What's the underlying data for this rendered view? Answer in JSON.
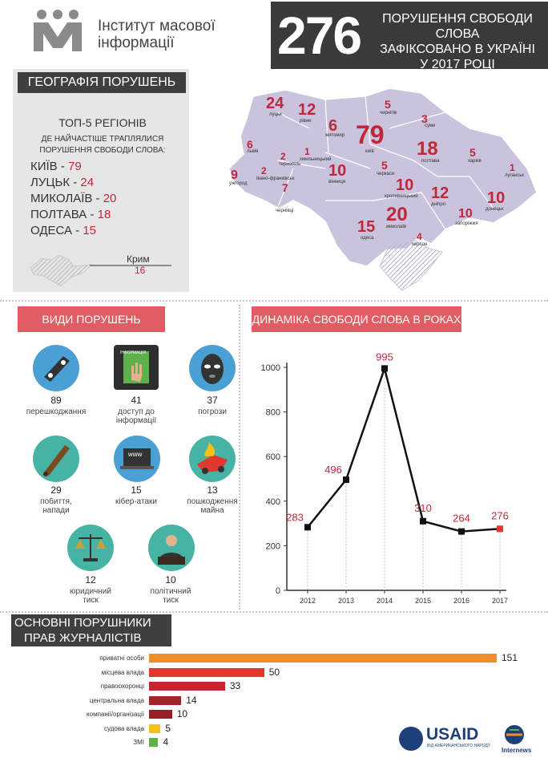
{
  "header": {
    "org_line1": "Інститут масової",
    "org_line2": "інформації",
    "total": "276",
    "headline_l1": "Порушення свободи слова",
    "headline_l2": "зафіксовано в Україні",
    "headline_l3": "у 2017 році"
  },
  "geography": {
    "title": "ГЕОГРАФІЯ ПОРУШЕНЬ",
    "top_title": "ТОП-5 РЕГІОНІВ",
    "top_sub_l1": "ДЕ НАЙЧАСТІШЕ ТРАПЛЯЛИСЯ",
    "top_sub_l2": "ПОРУШЕННЯ СВОБОДИ СЛОВА:",
    "top5": [
      {
        "name": "КИЇВ - ",
        "value": "79"
      },
      {
        "name": "ЛУЦЬК - ",
        "value": "24"
      },
      {
        "name": "МИКОЛАЇВ - ",
        "value": "20"
      },
      {
        "name": "ПОЛТАВА - ",
        "value": "18"
      },
      {
        "name": "ОДЕСА - ",
        "value": "15"
      }
    ],
    "crimea_label": "Крим",
    "crimea_value": "16",
    "map_regions": [
      {
        "value": "24",
        "name": "луцьк"
      },
      {
        "value": "12",
        "name": "рівне"
      },
      {
        "value": "6",
        "name": "житомир"
      },
      {
        "value": "79",
        "name": "київ"
      },
      {
        "value": "5",
        "name": "чернігів"
      },
      {
        "value": "3",
        "name": "суми"
      },
      {
        "value": "6",
        "name": "львів"
      },
      {
        "value": "2",
        "name": "тернопіль"
      },
      {
        "value": "2",
        "name": "івано-франківськ"
      },
      {
        "value": "1",
        "name": "хмельницький"
      },
      {
        "value": "10",
        "name": "вінниця"
      },
      {
        "value": "5",
        "name": "черкаси"
      },
      {
        "value": "18",
        "name": "полтава"
      },
      {
        "value": "5",
        "name": "харків"
      },
      {
        "value": "1",
        "name": "луганськ"
      },
      {
        "value": "9",
        "name": "ужгород"
      },
      {
        "value": "7",
        "name": "чернівці"
      },
      {
        "value": "10",
        "name": "кропивницький"
      },
      {
        "value": "12",
        "name": "дніпро"
      },
      {
        "value": "10",
        "name": "донецьк"
      },
      {
        "value": "10",
        "name": "запоріжжя"
      },
      {
        "value": "20",
        "name": "миколаїв"
      },
      {
        "value": "15",
        "name": "одеса"
      },
      {
        "value": "4",
        "name": "херсон"
      }
    ]
  },
  "types": {
    "title": "ВИДИ ПОРУШЕНЬ",
    "items": [
      {
        "num": "89",
        "l1": "перешкоджання",
        "l2": "",
        "icon": "camera-strap-icon"
      },
      {
        "num": "41",
        "l1": "доступ до",
        "l2": "інформації",
        "icon": "hand-on-document-icon",
        "doc_label": "ІНФОРМАЦІЯ"
      },
      {
        "num": "37",
        "l1": "погрози",
        "l2": "",
        "icon": "balaclava-icon"
      },
      {
        "num": "29",
        "l1": "побиття,",
        "l2": "напади",
        "icon": "bat-icon"
      },
      {
        "num": "15",
        "l1": "кібер-атаки",
        "l2": "",
        "icon": "laptop-www-icon",
        "screen_label": "www"
      },
      {
        "num": "13",
        "l1": "пошкодження",
        "l2": "майна",
        "icon": "burning-car-icon"
      },
      {
        "num": "12",
        "l1": "юридичний",
        "l2": "тиск",
        "icon": "scales-icon"
      },
      {
        "num": "10",
        "l1": "політичний",
        "l2": "тиск",
        "icon": "politician-icon"
      }
    ]
  },
  "dynamics": {
    "title": "ДИНАМІКА СВОБОДИ СЛОВА В РОКАХ"
  },
  "perpetrators": {
    "title_l1": "ОСНОВНІ ПОРУШНИКИ",
    "title_l2": "ПРАВ ЖУРНАЛІСТІВ",
    "items": [
      {
        "label": "приватні особи",
        "value": 151,
        "color": "#f08c2a"
      },
      {
        "label": "місцева влада",
        "value": 50,
        "color": "#e0382e"
      },
      {
        "label": "правоохоронці",
        "value": 33,
        "color": "#c4262e"
      },
      {
        "label": "центральна влада",
        "value": 14,
        "color": "#a3222a"
      },
      {
        "label": "компанії/організації",
        "value": 10,
        "color": "#9a1e26"
      },
      {
        "label": "судова влада",
        "value": 5,
        "color": "#f2c21a"
      },
      {
        "label": "ЗМІ",
        "value": 4,
        "color": "#5db04a"
      }
    ]
  },
  "footer": {
    "usaid": "USAID",
    "usaid_tag": "ВІД АМЕРИКАНСЬКОГО НАРОДУ",
    "internews": "Internews"
  },
  "chart_data": [
    {
      "type": "line",
      "title": "ДИНАМІКА СВОБОДИ СЛОВА В РОКАХ",
      "x": [
        "2012",
        "2013",
        "2014",
        "2015",
        "2016",
        "2017"
      ],
      "values": [
        283,
        496,
        995,
        310,
        264,
        276
      ],
      "ylim": [
        0,
        1000
      ],
      "yticks": [
        0,
        200,
        400,
        600,
        800,
        1000
      ],
      "grid": false,
      "highlight_last_color": "#e0382e"
    },
    {
      "type": "bar",
      "orientation": "horizontal",
      "title": "ОСНОВНІ ПОРУШНИКИ ПРАВ ЖУРНАЛІСТІВ",
      "categories": [
        "приватні особи",
        "місцева влада",
        "правоохоронці",
        "центральна влада",
        "компанії/організації",
        "судова влада",
        "ЗМІ"
      ],
      "values": [
        151,
        50,
        33,
        14,
        10,
        5,
        4
      ]
    }
  ]
}
